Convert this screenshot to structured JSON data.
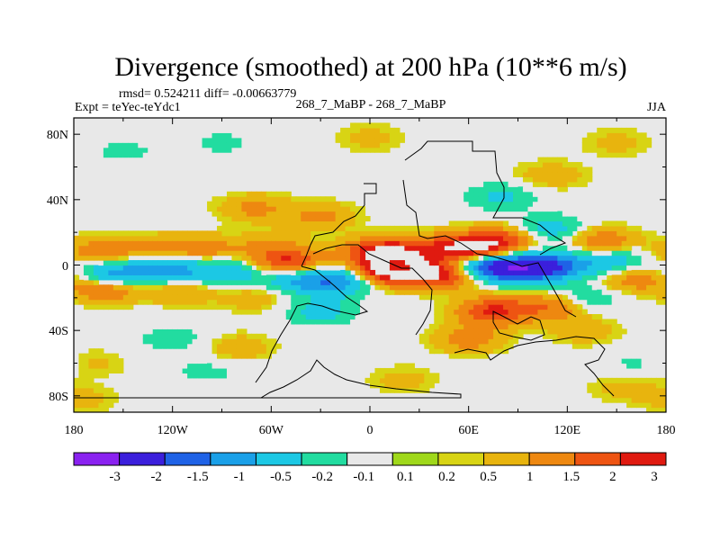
{
  "chart_data": {
    "type": "heatmap",
    "title": "Divergence (smoothed) at 200 hPa (10**6 m/s)",
    "stats_line": "rmsd= 0.524211 diff= -0.00663779",
    "expt_label": "Expt = teYec-teYdc1",
    "center_label": "268_7_MaBP - 268_7_MaBP",
    "season": "JJA",
    "x_axis": {
      "range": [
        -180,
        180
      ],
      "tick_labels": [
        "180",
        "120W",
        "60W",
        "0",
        "60E",
        "120E",
        "180"
      ]
    },
    "y_axis": {
      "range": [
        -90,
        90
      ],
      "tick_labels": [
        "80S",
        "40S",
        "0",
        "40N",
        "80N"
      ]
    },
    "colorbar": {
      "labels": [
        "-3",
        "-2",
        "-1.5",
        "-1",
        "-0.5",
        "-0.2",
        "-0.1",
        "0.1",
        "0.2",
        "0.5",
        "1",
        "1.5",
        "2",
        "3"
      ],
      "colors": [
        "#8a22f0",
        "#3b1fdc",
        "#1f62e6",
        "#1aa0e8",
        "#1cc8e4",
        "#22dca0",
        "#e8e8e8",
        "#9fd81a",
        "#d8d414",
        "#e8b40e",
        "#ee8810",
        "#ee5412",
        "#e01a10"
      ]
    },
    "features": [
      {
        "lon": -165,
        "lat": 8,
        "value": 0.8
      },
      {
        "lon": -130,
        "lat": 10,
        "value": 0.6
      },
      {
        "lon": -100,
        "lat": 10,
        "value": 0.7
      },
      {
        "lon": -60,
        "lat": 12,
        "value": 0.5
      },
      {
        "lon": -155,
        "lat": -5,
        "value": -1.4
      },
      {
        "lon": -120,
        "lat": -3,
        "value": -1.2
      },
      {
        "lon": -85,
        "lat": -4,
        "value": -0.9
      },
      {
        "lon": -45,
        "lat": -8,
        "value": -1.0
      },
      {
        "lon": -160,
        "lat": -14,
        "value": 1.0
      },
      {
        "lon": -115,
        "lat": -15,
        "value": 0.6
      },
      {
        "lon": -70,
        "lat": -20,
        "value": 0.4
      },
      {
        "lon": -50,
        "lat": 2,
        "value": 1.6
      },
      {
        "lon": -20,
        "lat": -10,
        "value": -1.3
      },
      {
        "lon": -30,
        "lat": -28,
        "value": -0.7
      },
      {
        "lon": 5,
        "lat": 8,
        "value": 1.8
      },
      {
        "lon": 15,
        "lat": -3,
        "value": 2.6
      },
      {
        "lon": 30,
        "lat": 10,
        "value": 1.0
      },
      {
        "lon": 45,
        "lat": -5,
        "value": 2.0
      },
      {
        "lon": 60,
        "lat": 10,
        "value": 2.2
      },
      {
        "lon": 80,
        "lat": 15,
        "value": 1.3
      },
      {
        "lon": 65,
        "lat": 0,
        "value": -1.8
      },
      {
        "lon": 90,
        "lat": -2,
        "value": -2.4
      },
      {
        "lon": 115,
        "lat": 0,
        "value": -1.5
      },
      {
        "lon": 150,
        "lat": 2,
        "value": -0.8
      },
      {
        "lon": 110,
        "lat": 22,
        "value": -0.8
      },
      {
        "lon": 140,
        "lat": 15,
        "value": 0.9
      },
      {
        "lon": 160,
        "lat": -8,
        "value": 0.8
      },
      {
        "lon": 130,
        "lat": -20,
        "value": -0.6
      },
      {
        "lon": 75,
        "lat": -28,
        "value": 1.6
      },
      {
        "lon": 110,
        "lat": -25,
        "value": 1.0
      },
      {
        "lon": 60,
        "lat": -45,
        "value": 0.7
      },
      {
        "lon": 130,
        "lat": -40,
        "value": 0.4
      },
      {
        "lon": -30,
        "lat": 30,
        "value": 0.6
      },
      {
        "lon": -70,
        "lat": 35,
        "value": 0.6
      },
      {
        "lon": 80,
        "lat": 42,
        "value": -0.6
      },
      {
        "lon": 110,
        "lat": 55,
        "value": 0.4
      },
      {
        "lon": -120,
        "lat": -45,
        "value": -0.4
      },
      {
        "lon": -80,
        "lat": -50,
        "value": 0.4
      },
      {
        "lon": -100,
        "lat": -65,
        "value": -0.3
      },
      {
        "lon": 20,
        "lat": -70,
        "value": 0.3
      },
      {
        "lon": -150,
        "lat": 70,
        "value": -0.3
      },
      {
        "lon": -90,
        "lat": 75,
        "value": -0.3
      },
      {
        "lon": 0,
        "lat": 78,
        "value": 0.3
      },
      {
        "lon": 150,
        "lat": 75,
        "value": 0.3
      },
      {
        "lon": -170,
        "lat": -60,
        "value": 0.3
      },
      {
        "lon": 165,
        "lat": -60,
        "value": -0.3
      },
      {
        "lon": 155,
        "lat": -75,
        "value": 0.3
      },
      {
        "lon": -175,
        "lat": -82,
        "value": 0.3
      }
    ]
  }
}
